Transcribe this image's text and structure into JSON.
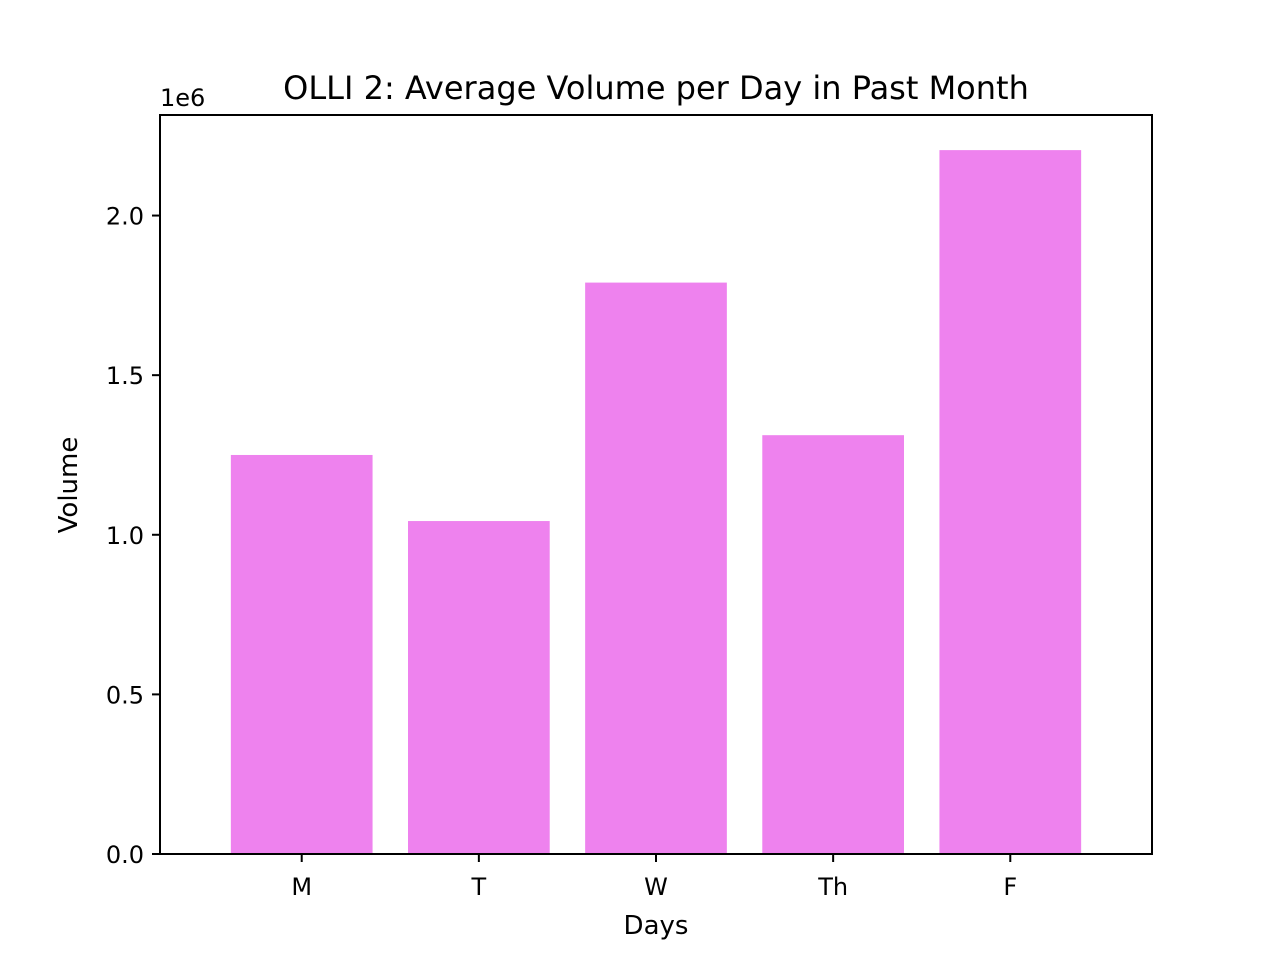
{
  "chart_data": {
    "type": "bar",
    "title": "OLLI 2: Average Volume per Day in Past Month",
    "xlabel": "Days",
    "ylabel": "Volume",
    "y_offset_label": "1e6",
    "categories": [
      "M",
      "T",
      "W",
      "Th",
      "F"
    ],
    "values": [
      1250000,
      1043000,
      1790000,
      1312000,
      2205000
    ],
    "ylim": [
      0,
      2315000
    ],
    "yticks": [
      0,
      500000,
      1000000,
      1500000,
      2000000
    ],
    "ytick_labels": [
      "0.0",
      "0.5",
      "1.0",
      "1.5",
      "2.0"
    ],
    "bar_color": "#ee82ee",
    "grid": false,
    "legend": "none"
  }
}
